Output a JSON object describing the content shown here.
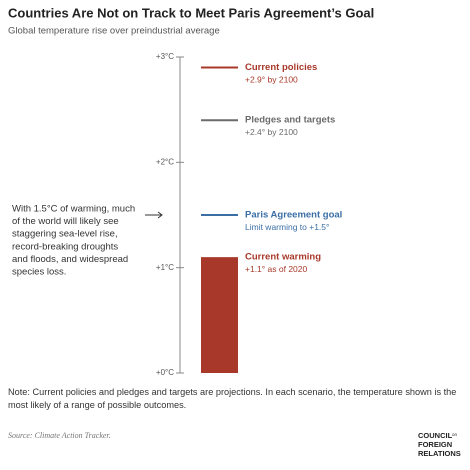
{
  "chart_data": {
    "type": "bar",
    "title": "Countries Are Not on Track to Meet Paris Agreement’s Goal",
    "subtitle": "Global temperature rise over preindustrial average",
    "ylim": [
      0,
      3
    ],
    "yticks": [
      {
        "value": 0,
        "label": "+0°C"
      },
      {
        "value": 1,
        "label": "+1°C"
      },
      {
        "value": 2,
        "label": "+2°C"
      },
      {
        "value": 3,
        "label": "+3°C"
      }
    ],
    "series": [
      {
        "name": "Current policies",
        "color": "#a8392a",
        "kind": "line",
        "values": [
          2.9
        ],
        "value_labels": [
          "+2.9° by 2100"
        ]
      },
      {
        "name": "Pledges and targets",
        "color": "#6b6b6b",
        "kind": "line",
        "values": [
          2.4
        ],
        "value_labels": [
          "+2.4° by 2100"
        ]
      },
      {
        "name": "Paris Agreement goal",
        "color": "#3a6ea5",
        "kind": "line",
        "values": [
          1.5
        ],
        "value_labels": [
          "Limit warming to +1.5°"
        ]
      },
      {
        "name": "Current warming",
        "color": "#a8392a",
        "kind": "bar",
        "values": [
          1.1
        ],
        "value_labels": [
          "+1.1° as of 2020"
        ]
      }
    ],
    "annotation": [
      "With 1.5°C of warming, much",
      "of the world will likely see",
      "staggering sea-level rise,",
      "record-breaking droughts",
      "and floods, and widespread",
      "species loss."
    ],
    "note": "Note: Current policies and pledges and targets are projections. In each scenario, the temperature shown is the most likely of a range of possible outcomes.",
    "source": "Source: Climate Action Tracker.",
    "logo": [
      "COUNCIL",
      "on",
      "FOREIGN",
      "RELATIONS"
    ]
  }
}
